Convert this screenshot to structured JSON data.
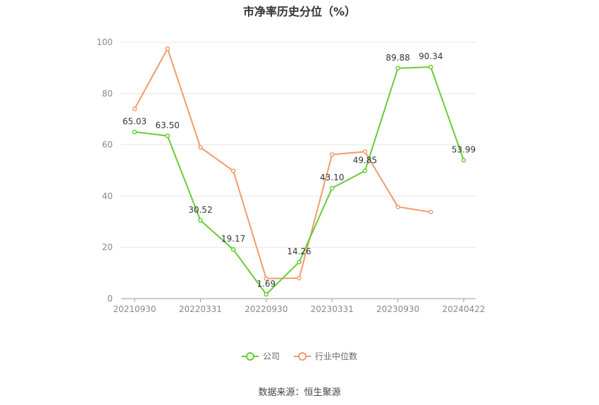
{
  "title": "市净率历史分位（%）",
  "source": "数据来源：恒生聚源",
  "colors": {
    "company": "#66cc33",
    "industry": "#f39a6b",
    "grid": "#e6e6e6",
    "axis": "#999999"
  },
  "legend": [
    {
      "label": "公司",
      "color": "#66cc33"
    },
    {
      "label": "行业中位数",
      "color": "#f39a6b"
    }
  ],
  "chart_data": {
    "type": "line",
    "title": "市净率历史分位（%）",
    "x": [
      "20210930",
      "20211231",
      "20220331",
      "20220630",
      "20220930",
      "20221231",
      "20230331",
      "20230630",
      "20230930",
      "20231231",
      "20240422"
    ],
    "x_tick_labels": [
      "20210930",
      "20220331",
      "20220930",
      "20230331",
      "20230930",
      "20240422"
    ],
    "ylim": [
      0,
      100
    ],
    "y_ticks": [
      0,
      20,
      40,
      60,
      80,
      100
    ],
    "grid": true,
    "legend_position": "bottom",
    "series": [
      {
        "name": "公司",
        "color": "#66cc33",
        "values": [
          65.03,
          63.5,
          30.52,
          19.17,
          1.69,
          14.26,
          43.1,
          49.85,
          89.88,
          90.34,
          53.99
        ],
        "labels": [
          "65.03",
          "63.50",
          "30.52",
          "19.17",
          "1.69",
          "14.26",
          "43.10",
          "49.85",
          "89.88",
          "90.34",
          "53.99"
        ]
      },
      {
        "name": "行业中位数",
        "color": "#f39a6b",
        "values": [
          74.0,
          97.5,
          59.0,
          49.8,
          7.8,
          8.0,
          56.2,
          57.3,
          35.8,
          33.8,
          null
        ]
      }
    ]
  }
}
